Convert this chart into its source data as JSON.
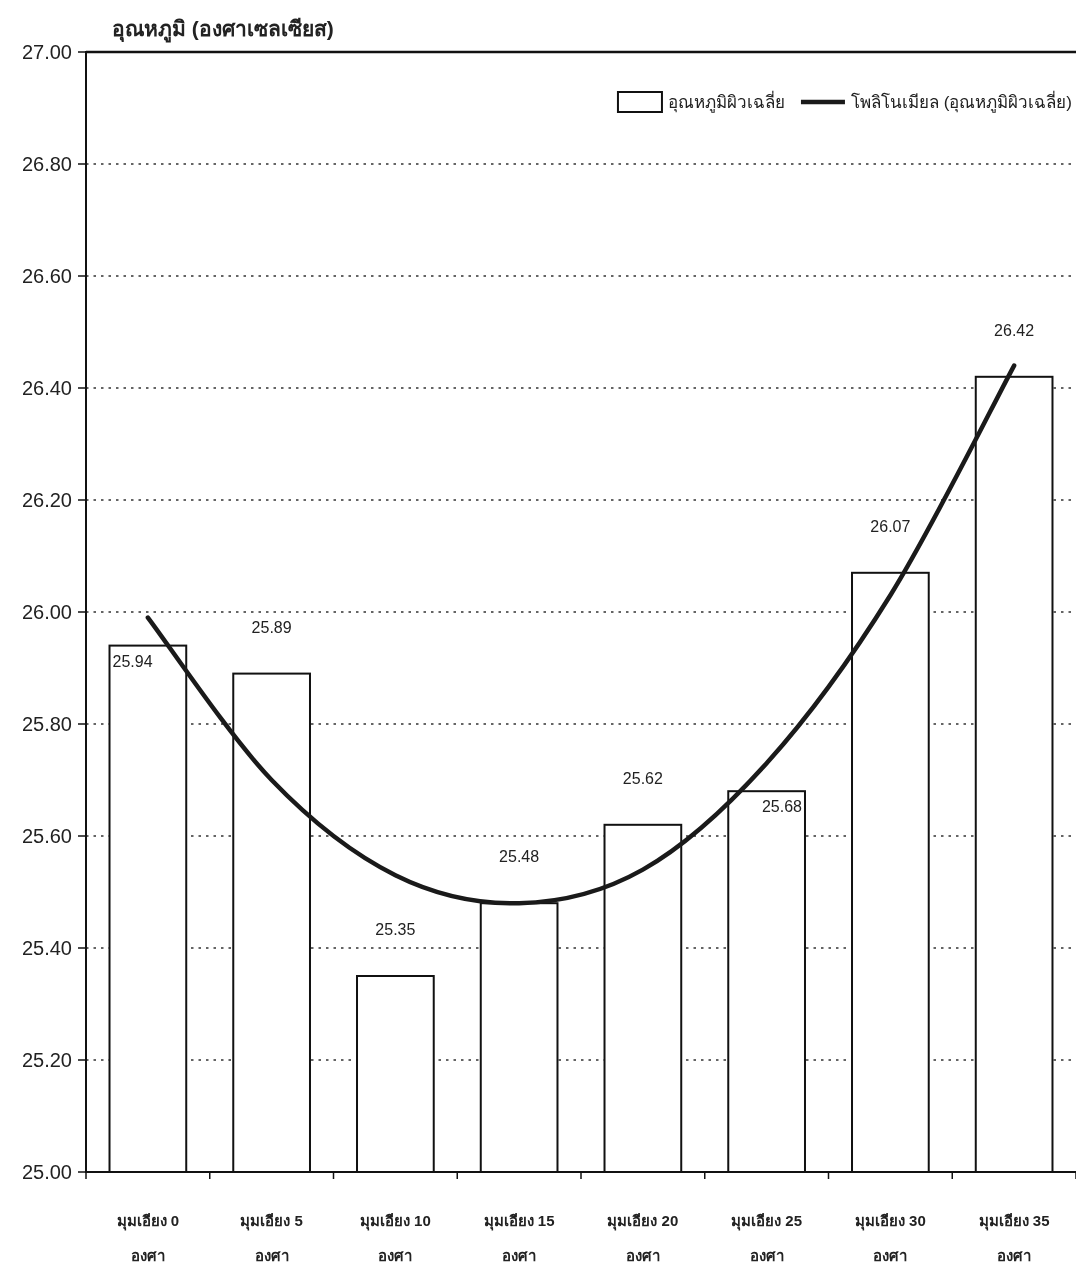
{
  "chart_data": {
    "type": "bar",
    "ylabel": "อุณหภูมิ (องศาเซลเซียส)",
    "categories": [
      "มุมเอียง 0 องศา",
      "มุมเอียง 5 องศา",
      "มุมเอียง 10 องศา",
      "มุมเอียง 15 องศา",
      "มุมเอียง 20 องศา",
      "มุมเอียง 25 องศา",
      "มุมเอียง 30 องศา",
      "มุมเอียง 35 องศา"
    ],
    "series": [
      {
        "name": "อุณหภูมิผิวเฉลี่ย",
        "color": "#ffffff",
        "values": [
          25.94,
          25.89,
          25.35,
          25.48,
          25.62,
          25.68,
          26.07,
          26.42
        ],
        "value_labels": [
          "25.94",
          "25.89",
          "25.35",
          "25.48",
          "25.62",
          "25.68",
          "26.07",
          "26.42"
        ]
      },
      {
        "name": "โพลิโนเมียล (อุณหภูมิผิวเฉลี่ย)",
        "type": "line",
        "color": "#1a1a1a",
        "values": [
          25.99,
          25.7,
          25.53,
          25.48,
          25.54,
          25.73,
          26.03,
          26.44
        ]
      }
    ],
    "ylim": [
      25,
      27
    ],
    "yticks": [
      {
        "value": 25,
        "label": "25.00"
      },
      {
        "value": 25.2,
        "label": "25.20"
      },
      {
        "value": 25.4,
        "label": "25.40"
      },
      {
        "value": 25.6,
        "label": "25.60"
      },
      {
        "value": 25.8,
        "label": "25.80"
      },
      {
        "value": 26,
        "label": "26.00"
      },
      {
        "value": 26.2,
        "label": "26.20"
      },
      {
        "value": 26.4,
        "label": "26.40"
      },
      {
        "value": 26.6,
        "label": "26.60"
      },
      {
        "value": 26.8,
        "label": "26.80"
      },
      {
        "value": 27,
        "label": "27.00"
      }
    ],
    "grid": "y",
    "legend": "top right"
  }
}
